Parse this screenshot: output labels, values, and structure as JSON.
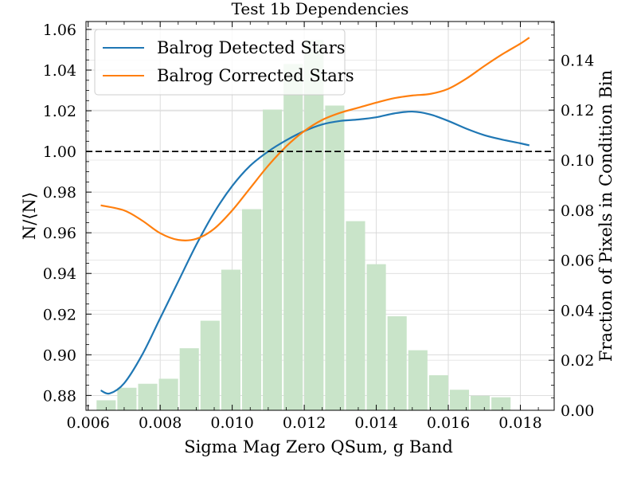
{
  "chart_data": {
    "type": "bar+line",
    "title": "Test 1b Dependencies",
    "xlabel": "Sigma Mag Zero QSum, g Band",
    "ylabel_left": "N/⟨N⟩",
    "ylabel_right": "Fraction of Pixels in Condition Bin",
    "xlim": [
      0.00594,
      0.01894
    ],
    "ylim_left": [
      0.8727,
      1.0639
    ],
    "ylim_right": [
      0.0,
      0.1554
    ],
    "x_ticks": [
      0.006,
      0.008,
      0.01,
      0.012,
      0.014,
      0.016,
      0.018
    ],
    "x_tick_labels": [
      "0.006",
      "0.008",
      "0.010",
      "0.012",
      "0.014",
      "0.016",
      "0.018"
    ],
    "y_left_ticks": [
      0.88,
      0.9,
      0.92,
      0.94,
      0.96,
      0.98,
      1.0,
      1.02,
      1.04,
      1.06
    ],
    "y_left_tick_labels": [
      "0.88",
      "0.90",
      "0.92",
      "0.94",
      "0.96",
      "0.98",
      "1.00",
      "1.02",
      "1.04",
      "1.06"
    ],
    "y_right_ticks": [
      0.0,
      0.02,
      0.04,
      0.06,
      0.08,
      0.1,
      0.12,
      0.14
    ],
    "y_right_tick_labels": [
      "0.00",
      "0.02",
      "0.04",
      "0.06",
      "0.08",
      "0.10",
      "0.12",
      "0.14"
    ],
    "reference_line": {
      "y": 1.0,
      "style": "dashed",
      "color": "#000000"
    },
    "histogram": {
      "color": "#c9e4c9",
      "bin_width": 0.000577,
      "bin_centers": [
        0.006522,
        0.007099,
        0.007676,
        0.008253,
        0.00883,
        0.009407,
        0.009984,
        0.010561,
        0.011138,
        0.011715,
        0.012292,
        0.012869,
        0.013446,
        0.014023,
        0.0146,
        0.015177,
        0.015754,
        0.016331,
        0.016908,
        0.017485,
        0.018062
      ],
      "values": [
        0.004,
        0.009,
        0.0106,
        0.0126,
        0.0248,
        0.0358,
        0.0562,
        0.0804,
        0.1202,
        0.1384,
        0.148,
        0.1218,
        0.0756,
        0.0584,
        0.0376,
        0.024,
        0.014,
        0.0082,
        0.0058,
        0.0052,
        0.0
      ]
    },
    "series": [
      {
        "name": "Balrog Detected Stars",
        "color": "#1f77b4",
        "x": [
          0.00635,
          0.0066,
          0.007,
          0.0075,
          0.008,
          0.0085,
          0.009,
          0.0095,
          0.01,
          0.0105,
          0.011,
          0.0115,
          0.012,
          0.0125,
          0.013,
          0.0135,
          0.014,
          0.0145,
          0.015,
          0.0155,
          0.016,
          0.0165,
          0.017,
          0.0175,
          0.018,
          0.01825
        ],
        "y": [
          0.8825,
          0.881,
          0.886,
          0.9,
          0.918,
          0.936,
          0.954,
          0.97,
          0.983,
          0.993,
          1.0,
          1.0055,
          1.01,
          1.0133,
          1.015,
          1.0157,
          1.0168,
          1.0187,
          1.0196,
          1.0182,
          1.015,
          1.0112,
          1.008,
          1.0058,
          1.004,
          1.003
        ]
      },
      {
        "name": "Balrog Corrected Stars",
        "color": "#ff7f0e",
        "x": [
          0.00635,
          0.007,
          0.0075,
          0.008,
          0.0085,
          0.009,
          0.0095,
          0.01,
          0.0105,
          0.011,
          0.0115,
          0.012,
          0.0125,
          0.013,
          0.0135,
          0.014,
          0.0145,
          0.015,
          0.0155,
          0.016,
          0.0165,
          0.017,
          0.0175,
          0.018,
          0.01825
        ],
        "y": [
          0.9735,
          0.971,
          0.966,
          0.9598,
          0.9565,
          0.957,
          0.962,
          0.971,
          0.982,
          0.993,
          1.0025,
          1.01,
          1.0155,
          1.019,
          1.0215,
          1.024,
          1.0262,
          1.0275,
          1.0283,
          1.0308,
          1.0358,
          1.042,
          1.0478,
          1.053,
          1.056
        ]
      }
    ],
    "legend": {
      "position": "top-left"
    },
    "grid": true
  }
}
